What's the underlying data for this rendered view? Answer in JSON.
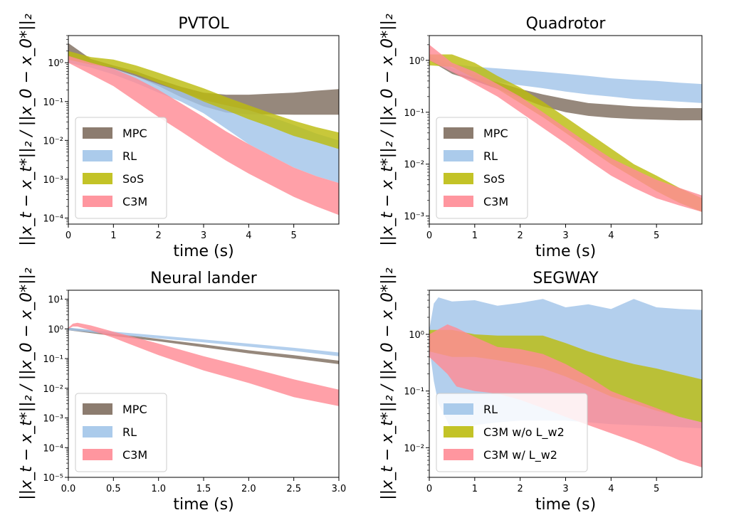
{
  "y_axis_label": "||x_t − x_t*||₂ / ||x_0 − x_0*||₂",
  "colors": {
    "MPC": "#7f6e5f",
    "RL": "#a2c5e9",
    "SoS": "#bcbc0f",
    "C3M": "#ff8b95",
    "C3M w/o L_w2": "#bcbc0f",
    "C3M w/ L_w2": "#ff8b95"
  },
  "chart_data": [
    {
      "type": "area",
      "title": "PVTOL",
      "xlabel": "time (s)",
      "xlim": [
        0,
        6
      ],
      "xticks": [
        0,
        1,
        2,
        3,
        4,
        5
      ],
      "ylim": [
        7e-05,
        5
      ],
      "yscale": "log",
      "yticks": [
        0.0001,
        0.001,
        0.01,
        0.1,
        1
      ],
      "legend": "lower-left",
      "series": [
        {
          "name": "MPC",
          "x": [
            0,
            0.5,
            1,
            1.5,
            2,
            2.5,
            3,
            3.5,
            4,
            4.5,
            5,
            5.5,
            6
          ],
          "lower": [
            1.2,
            0.9,
            0.7,
            0.45,
            0.25,
            0.13,
            0.075,
            0.052,
            0.047,
            0.047,
            0.046,
            0.046,
            0.046
          ],
          "upper": [
            3.2,
            1.25,
            0.85,
            0.6,
            0.37,
            0.24,
            0.17,
            0.15,
            0.15,
            0.16,
            0.17,
            0.19,
            0.21
          ]
        },
        {
          "name": "RL",
          "x": [
            0,
            0.5,
            1,
            1.5,
            2,
            2.5,
            3,
            3.5,
            4,
            4.5,
            5,
            5.5,
            6
          ],
          "lower": [
            1,
            0.75,
            0.5,
            0.3,
            0.17,
            0.1,
            0.05,
            0.02,
            0.008,
            0.004,
            0.002,
            0.0012,
            0.0008
          ],
          "upper": [
            1.4,
            1.0,
            0.7,
            0.45,
            0.28,
            0.18,
            0.11,
            0.08,
            0.06,
            0.04,
            0.025,
            0.015,
            0.01
          ]
        },
        {
          "name": "SoS",
          "x": [
            0,
            0.5,
            1,
            1.5,
            2,
            2.5,
            3,
            3.5,
            4,
            4.5,
            5,
            5.5,
            6
          ],
          "lower": [
            1.2,
            0.9,
            0.75,
            0.5,
            0.3,
            0.18,
            0.1,
            0.06,
            0.035,
            0.022,
            0.013,
            0.009,
            0.006
          ],
          "upper": [
            2.0,
            1.4,
            1.2,
            0.85,
            0.55,
            0.35,
            0.22,
            0.13,
            0.08,
            0.05,
            0.032,
            0.022,
            0.016
          ]
        },
        {
          "name": "C3M",
          "x": [
            0,
            0.5,
            1,
            1.5,
            2,
            2.5,
            3,
            3.5,
            4,
            4.5,
            5,
            5.5,
            6
          ],
          "lower": [
            1.0,
            0.5,
            0.25,
            0.1,
            0.04,
            0.017,
            0.007,
            0.003,
            0.0014,
            0.0007,
            0.00035,
            0.0002,
            0.00012
          ],
          "upper": [
            1.5,
            1.0,
            0.7,
            0.4,
            0.2,
            0.09,
            0.04,
            0.017,
            0.008,
            0.004,
            0.002,
            0.0012,
            0.0008
          ]
        }
      ]
    },
    {
      "type": "area",
      "title": "Quadrotor",
      "xlabel": "time (s)",
      "xlim": [
        0,
        6
      ],
      "xticks": [
        0,
        1,
        2,
        3,
        4,
        5
      ],
      "ylim": [
        0.0007,
        3
      ],
      "yscale": "log",
      "yticks": [
        0.001,
        0.01,
        0.1,
        1
      ],
      "legend": "lower-left",
      "series": [
        {
          "name": "MPC",
          "x": [
            0,
            0.5,
            1,
            1.5,
            2,
            2.5,
            3,
            3.5,
            4,
            4.5,
            5,
            5.5,
            6
          ],
          "lower": [
            1.0,
            0.55,
            0.4,
            0.28,
            0.19,
            0.13,
            0.1,
            0.085,
            0.078,
            0.074,
            0.072,
            0.07,
            0.07
          ],
          "upper": [
            1.2,
            0.7,
            0.52,
            0.38,
            0.28,
            0.22,
            0.18,
            0.15,
            0.14,
            0.13,
            0.125,
            0.12,
            0.12
          ]
        },
        {
          "name": "RL",
          "x": [
            0,
            0.5,
            1,
            1.5,
            2,
            2.5,
            3,
            3.5,
            4,
            4.5,
            5,
            5.5,
            6
          ],
          "lower": [
            1.0,
            0.6,
            0.45,
            0.38,
            0.33,
            0.29,
            0.25,
            0.22,
            0.2,
            0.18,
            0.17,
            0.16,
            0.15
          ],
          "upper": [
            1.2,
            0.85,
            0.75,
            0.7,
            0.65,
            0.6,
            0.55,
            0.5,
            0.45,
            0.42,
            0.4,
            0.37,
            0.35
          ]
        },
        {
          "name": "SoS",
          "x": [
            0,
            0.5,
            1,
            1.5,
            2,
            2.5,
            3,
            3.5,
            4,
            4.5,
            5,
            5.5,
            6
          ],
          "lower": [
            0.8,
            0.75,
            0.45,
            0.28,
            0.15,
            0.08,
            0.04,
            0.02,
            0.01,
            0.0055,
            0.003,
            0.0018,
            0.0012
          ],
          "upper": [
            1.3,
            1.3,
            0.9,
            0.5,
            0.3,
            0.16,
            0.08,
            0.04,
            0.02,
            0.01,
            0.006,
            0.0035,
            0.0022
          ]
        },
        {
          "name": "C3M",
          "x": [
            0,
            0.5,
            1,
            1.5,
            2,
            2.5,
            3,
            3.5,
            4,
            4.5,
            5,
            5.5,
            6
          ],
          "lower": [
            1.0,
            0.6,
            0.35,
            0.2,
            0.1,
            0.05,
            0.025,
            0.012,
            0.006,
            0.0035,
            0.0022,
            0.0016,
            0.0012
          ],
          "upper": [
            2.0,
            0.9,
            0.6,
            0.35,
            0.2,
            0.1,
            0.05,
            0.025,
            0.013,
            0.008,
            0.005,
            0.0035,
            0.0025
          ]
        }
      ]
    },
    {
      "type": "area",
      "title": "Neural lander",
      "xlabel": "time (s)",
      "xlim": [
        0,
        3
      ],
      "xticks": [
        0.0,
        0.5,
        1.0,
        1.5,
        2.0,
        2.5,
        3.0
      ],
      "ylim": [
        1e-05,
        20
      ],
      "yscale": "log",
      "yticks": [
        1e-05,
        0.0001,
        0.001,
        0.01,
        0.1,
        1,
        10
      ],
      "legend": "lower-left",
      "series": [
        {
          "name": "MPC",
          "x": [
            0,
            0.5,
            1.0,
            1.5,
            2.0,
            2.5,
            3.0
          ],
          "lower": [
            0.9,
            0.58,
            0.38,
            0.24,
            0.15,
            0.1,
            0.065
          ],
          "upper": [
            1.1,
            0.7,
            0.46,
            0.3,
            0.19,
            0.13,
            0.085
          ]
        },
        {
          "name": "RL",
          "x": [
            0,
            0.5,
            1.0,
            1.5,
            2.0,
            2.5,
            3.0
          ],
          "lower": [
            0.9,
            0.65,
            0.48,
            0.35,
            0.25,
            0.18,
            0.12
          ],
          "upper": [
            1.1,
            0.8,
            0.6,
            0.44,
            0.32,
            0.23,
            0.16
          ]
        },
        {
          "name": "C3M",
          "x": [
            0,
            0.05,
            0.1,
            0.25,
            0.5,
            1.0,
            1.5,
            2.0,
            2.5,
            3.0
          ],
          "lower": [
            1.0,
            1.2,
            1.2,
            0.9,
            0.5,
            0.13,
            0.04,
            0.015,
            0.005,
            0.0025
          ],
          "upper": [
            1.1,
            1.5,
            1.6,
            1.3,
            0.8,
            0.32,
            0.12,
            0.05,
            0.02,
            0.009
          ]
        }
      ]
    },
    {
      "type": "area",
      "title": "SEGWAY",
      "xlabel": "time (s)",
      "xlim": [
        0,
        6
      ],
      "xticks": [
        0,
        1,
        2,
        3,
        4,
        5
      ],
      "ylim": [
        0.003,
        6
      ],
      "yscale": "log",
      "yticks": [
        0.01,
        0.1,
        1
      ],
      "legend": "lower-left",
      "series": [
        {
          "name": "RL",
          "x": [
            0,
            0.1,
            0.2,
            0.5,
            1,
            1.5,
            2,
            2.5,
            3,
            3.5,
            4,
            4.5,
            5,
            5.5,
            6
          ],
          "lower": [
            0.6,
            0.15,
            0.06,
            0.02,
            0.025,
            0.028,
            0.03,
            0.03,
            0.03,
            0.028,
            0.026,
            0.025,
            0.024,
            0.023,
            0.022
          ],
          "upper": [
            1.2,
            3.5,
            4.5,
            3.8,
            4.0,
            3.2,
            3.6,
            4.2,
            3.0,
            3.4,
            2.8,
            4.2,
            3.0,
            2.8,
            2.7
          ]
        },
        {
          "name": "C3M w/o L_w2",
          "x": [
            0,
            0.5,
            1,
            1.5,
            2,
            2.5,
            3,
            3.5,
            4,
            4.5,
            5,
            5.5,
            6
          ],
          "lower": [
            0.5,
            0.4,
            0.4,
            0.35,
            0.3,
            0.25,
            0.18,
            0.12,
            0.08,
            0.06,
            0.045,
            0.035,
            0.028
          ],
          "upper": [
            1.2,
            1.2,
            1.0,
            0.95,
            0.95,
            0.95,
            0.7,
            0.5,
            0.38,
            0.3,
            0.25,
            0.2,
            0.16
          ]
        },
        {
          "name": "C3M w/ L_w2",
          "x": [
            0,
            0.4,
            0.6,
            1,
            1.5,
            2,
            2.5,
            3,
            3.5,
            4,
            4.5,
            5,
            5.5,
            6
          ],
          "lower": [
            0.4,
            0.2,
            0.12,
            0.1,
            0.09,
            0.07,
            0.05,
            0.035,
            0.025,
            0.018,
            0.013,
            0.009,
            0.006,
            0.0045
          ],
          "upper": [
            1.0,
            1.5,
            1.3,
            0.9,
            0.6,
            0.55,
            0.45,
            0.3,
            0.18,
            0.1,
            0.07,
            0.05,
            0.035,
            0.028
          ]
        }
      ]
    }
  ]
}
